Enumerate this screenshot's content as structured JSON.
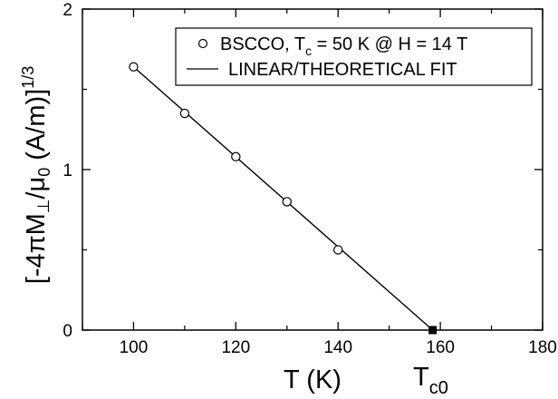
{
  "chart_data": {
    "type": "scatter",
    "title": "",
    "xlabel": "T (K)",
    "ylabel": "[-4πM⊥/μ0 (A/m)]^1/3",
    "xlim": [
      90,
      180
    ],
    "ylim": [
      0,
      2
    ],
    "xticks": [
      "100",
      "120",
      "140",
      "160",
      "180"
    ],
    "yticks": [
      "0",
      "1",
      "2"
    ],
    "grid": false,
    "legend_position": "top-right",
    "series": [
      {
        "name": "BSCCO, Tc = 50 K @ H = 14 T",
        "marker": "open-circle",
        "x": [
          100,
          110,
          120,
          130,
          140
        ],
        "y": [
          1.64,
          1.35,
          1.08,
          0.8,
          0.5
        ]
      },
      {
        "name": "LINEAR/THEORETICAL FIT",
        "style": "line",
        "x": [
          100,
          158.5
        ],
        "y": [
          1.64,
          0
        ]
      }
    ],
    "annotations": [
      {
        "label": "Tc0",
        "x": 158.5,
        "y": 0,
        "marker": "filled-square"
      }
    ]
  },
  "labels": {
    "xlabel": "T (K)",
    "tc0_main": "T",
    "tc0_sub": "c0",
    "y_open": "[-4πM",
    "y_perp": "⊥",
    "y_mid": "/μ",
    "y_sub0": "0",
    "y_units": " (A/m)]",
    "y_exp": "1/3",
    "legend_scatter_pre": "BSCCO, T",
    "legend_scatter_sub": "c",
    "legend_scatter_post": " = 50 K @ H = 14 T",
    "legend_line": "LINEAR/THEORETICAL FIT"
  }
}
